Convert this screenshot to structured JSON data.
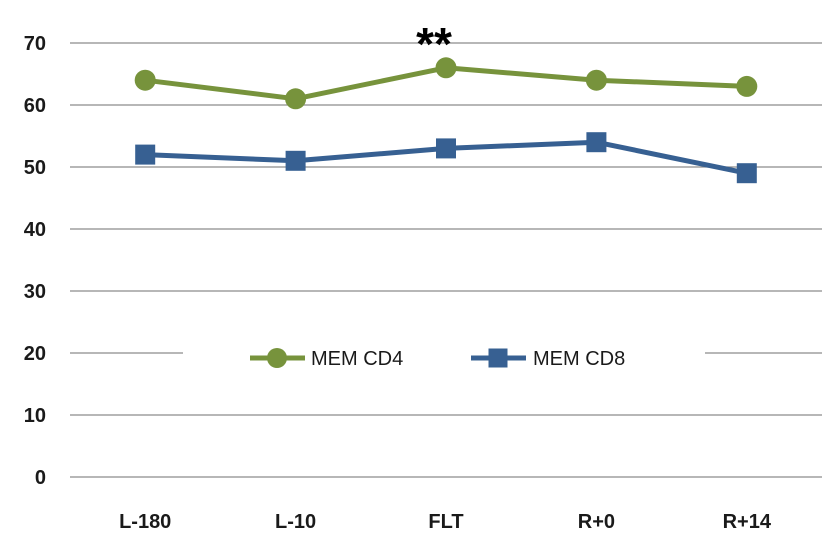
{
  "chart_data": {
    "type": "line",
    "categories": [
      "L-180",
      "L-10",
      "FLT",
      "R+0",
      "R+14"
    ],
    "ylim": [
      0,
      70
    ],
    "yticks": [
      "0",
      "10",
      "20",
      "30",
      "40",
      "50",
      "60",
      "70"
    ],
    "grid": true,
    "legend_position": "center",
    "series": [
      {
        "name": "MEM CD4",
        "values": [
          64,
          61,
          66,
          64,
          63
        ],
        "color": "#77933c",
        "marker": "circle"
      },
      {
        "name": "MEM CD8",
        "values": [
          52,
          51,
          53,
          54,
          49
        ],
        "color": "#376092",
        "marker": "square"
      }
    ],
    "annotations": [
      {
        "text": "**",
        "category": "FLT"
      }
    ]
  }
}
